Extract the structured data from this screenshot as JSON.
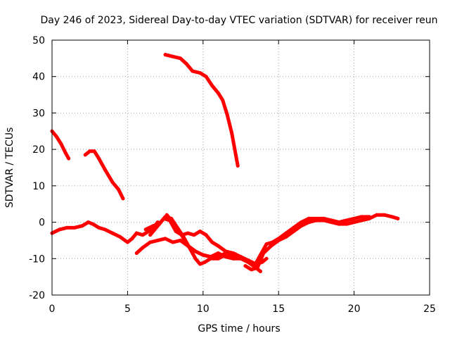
{
  "chart_data": {
    "type": "scatter",
    "title": "Day 246 of 2023, Sidereal Day-to-day VTEC variation (SDTVAR) for receiver reun",
    "xlabel": "GPS time / hours",
    "ylabel": "SDTVAR / TECUs",
    "xlim": [
      0,
      25
    ],
    "ylim": [
      -20,
      50
    ],
    "xticks": [
      0,
      5,
      10,
      15,
      20,
      25
    ],
    "yticks": [
      -20,
      -10,
      0,
      10,
      20,
      30,
      40,
      50
    ],
    "grid": true,
    "legend": "none",
    "marker_color": "#ff0000",
    "series": [
      {
        "name": "arc-1",
        "x": [
          0.0,
          0.3,
          0.6,
          0.9,
          1.1
        ],
        "y": [
          25.0,
          23.5,
          21.5,
          19.0,
          17.5
        ]
      },
      {
        "name": "arc-2",
        "x": [
          2.2,
          2.5,
          2.8,
          3.1,
          3.5,
          4.0,
          4.4,
          4.7
        ],
        "y": [
          18.5,
          19.5,
          19.5,
          17.5,
          14.5,
          11.0,
          9.0,
          6.5
        ]
      },
      {
        "name": "arc-3",
        "x": [
          7.5,
          8.0,
          8.5,
          8.9,
          9.3,
          9.8,
          10.2,
          10.6,
          11.0,
          11.3,
          11.6,
          11.9,
          12.1,
          12.3
        ],
        "y": [
          46.0,
          45.5,
          45.0,
          43.5,
          41.5,
          41.0,
          40.0,
          37.5,
          35.5,
          33.5,
          29.5,
          24.5,
          20.0,
          15.5
        ]
      },
      {
        "name": "arc-4",
        "x": [
          0.0,
          0.5,
          1.0,
          1.5,
          2.0,
          2.4,
          2.7,
          3.1,
          3.5,
          4.0,
          4.5,
          5.0,
          5.3,
          5.6,
          6.0,
          6.4,
          6.8,
          7.0
        ],
        "y": [
          -3.0,
          -2.0,
          -1.5,
          -1.5,
          -1.0,
          0.0,
          -0.5,
          -1.5,
          -2.0,
          -3.0,
          -4.0,
          -5.5,
          -4.5,
          -3.0,
          -3.5,
          -2.5,
          -1.0,
          0.0
        ]
      },
      {
        "name": "arc-5",
        "x": [
          5.6,
          6.0,
          6.5,
          7.0,
          7.5,
          8.0,
          8.5,
          9.0,
          9.5,
          10.0,
          10.5,
          11.0,
          11.5,
          12.0,
          12.5,
          13.0,
          13.5,
          13.9,
          14.2
        ],
        "y": [
          -8.5,
          -7.0,
          -5.5,
          -5.0,
          -4.5,
          -5.5,
          -5.0,
          -6.5,
          -8.0,
          -9.0,
          -9.5,
          -9.5,
          -8.5,
          -9.0,
          -9.5,
          -10.5,
          -11.5,
          -11.0,
          -10.0
        ]
      },
      {
        "name": "arc-6",
        "x": [
          6.2,
          6.7,
          7.1,
          7.5,
          7.9,
          8.3,
          8.7,
          9.1,
          9.5,
          9.8,
          10.1,
          10.5,
          11.0,
          11.5,
          12.0
        ],
        "y": [
          -2.0,
          -1.0,
          -0.5,
          1.5,
          1.0,
          -1.5,
          -4.0,
          -7.0,
          -10.0,
          -11.5,
          -11.0,
          -10.0,
          -10.0,
          -9.0,
          -9.5
        ]
      },
      {
        "name": "arc-7",
        "x": [
          6.5,
          7.0,
          7.4,
          7.8,
          8.2,
          8.6,
          9.0,
          9.4,
          9.8,
          10.2,
          10.6,
          11.0,
          11.5,
          12.0,
          12.5
        ],
        "y": [
          -3.5,
          -1.0,
          1.0,
          0.5,
          -2.5,
          -3.5,
          -3.0,
          -3.5,
          -2.5,
          -3.5,
          -5.5,
          -6.5,
          -8.0,
          -8.5,
          -9.5
        ]
      },
      {
        "name": "arc-8",
        "x": [
          7.6,
          8.0,
          8.5,
          9.0,
          9.5,
          10.0,
          10.5,
          11.0,
          11.5,
          12.0,
          12.5,
          13.0,
          13.5,
          13.8
        ],
        "y": [
          2.0,
          0.0,
          -3.0,
          -6.5,
          -8.0,
          -9.0,
          -9.5,
          -8.5,
          -9.5,
          -10.0,
          -10.0,
          -11.0,
          -12.5,
          -13.5
        ]
      },
      {
        "name": "arc-9",
        "x": [
          12.8,
          13.2,
          13.6,
          14.0,
          14.5,
          15.0,
          15.5,
          16.0,
          16.5,
          17.0,
          17.5,
          18.0,
          18.5,
          19.0,
          19.5,
          20.0,
          20.5,
          21.0,
          21.5,
          22.0,
          22.5,
          22.9
        ],
        "y": [
          -12.0,
          -13.0,
          -12.5,
          -8.5,
          -6.5,
          -5.0,
          -4.0,
          -2.5,
          -1.0,
          0.0,
          0.5,
          0.5,
          0.0,
          -0.5,
          -0.5,
          0.0,
          0.5,
          1.0,
          2.0,
          2.0,
          1.5,
          1.0
        ]
      },
      {
        "name": "arc-10",
        "x": [
          13.4,
          13.8,
          14.2,
          14.6,
          15.0,
          15.5,
          16.0,
          16.5,
          17.0,
          17.5,
          18.0,
          18.5,
          19.0,
          19.5,
          20.0,
          20.5,
          21.0
        ],
        "y": [
          -12.0,
          -9.0,
          -6.0,
          -5.5,
          -4.5,
          -3.0,
          -1.5,
          0.0,
          1.0,
          1.0,
          1.0,
          0.5,
          0.0,
          0.5,
          1.0,
          1.5,
          1.5
        ]
      }
    ]
  }
}
